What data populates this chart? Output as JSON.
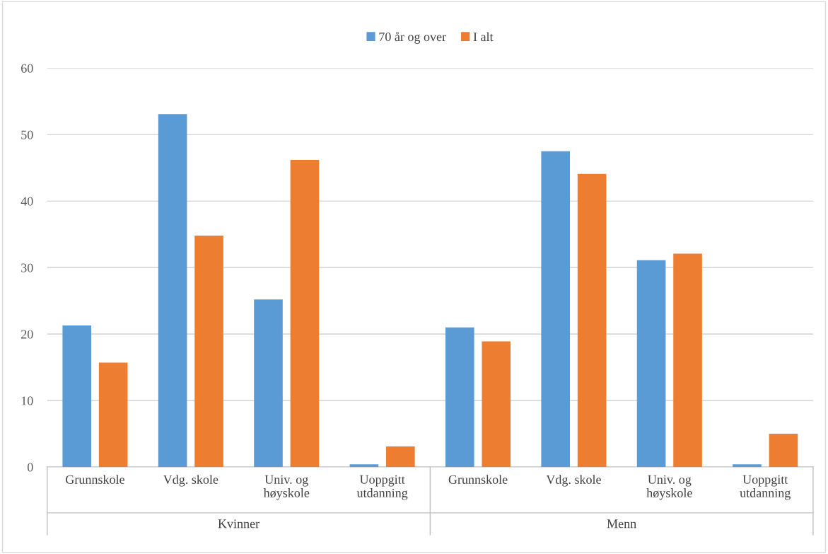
{
  "chart_data": {
    "type": "bar",
    "categories": [
      "Grunnskole",
      "Vdg. skole",
      "Univ. og\nhøyskole",
      "Uoppgitt\nutdanning",
      "Grunnskole",
      "Vdg. skole",
      "Univ. og\nhøyskole",
      "Uoppgitt\nutdanning"
    ],
    "series": [
      {
        "name": "70 år og over",
        "color": "#5b9bd5",
        "values": [
          21.3,
          53.1,
          25.2,
          0.4,
          21.0,
          47.5,
          31.1,
          0.4
        ]
      },
      {
        "name": "I alt",
        "color": "#ed7d31",
        "values": [
          15.7,
          34.8,
          46.2,
          3.1,
          18.9,
          44.1,
          32.1,
          5.0
        ]
      }
    ],
    "annotations": [
      "Kvinner",
      "Menn"
    ],
    "ylim": [
      0,
      60
    ],
    "yticks": [
      0,
      10,
      20,
      30,
      40,
      50,
      60
    ],
    "grid": "y",
    "legend": "top"
  }
}
